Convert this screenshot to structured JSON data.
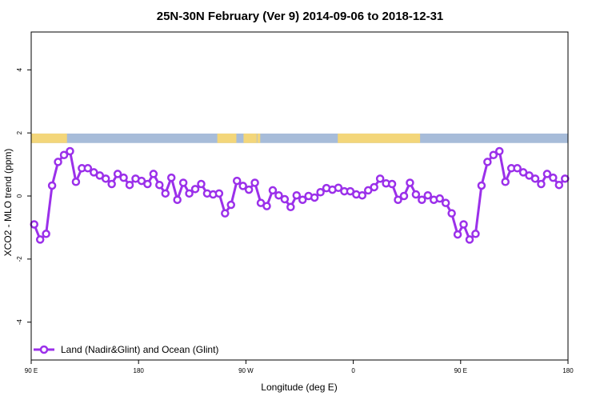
{
  "chart_data": {
    "type": "line",
    "title": "25N-30N February (Ver 9)   2014-09-06 to 2018-12-31",
    "xlabel": "Longitude (deg E)",
    "ylabel": "XCO2 - MLO trend (ppm)",
    "xlim": [
      90,
      540
    ],
    "ylim": [
      -5.2,
      5.2
    ],
    "x_ticks": [
      {
        "value": 90,
        "label": "90 E"
      },
      {
        "value": 180,
        "label": "180"
      },
      {
        "value": 270,
        "label": "90 W"
      },
      {
        "value": 360,
        "label": "0"
      },
      {
        "value": 450,
        "label": "90 E"
      },
      {
        "value": 540,
        "label": "180"
      }
    ],
    "y_ticks": [
      {
        "value": -4,
        "label": "-4"
      },
      {
        "value": -2,
        "label": "-2"
      },
      {
        "value": 0,
        "label": "0"
      },
      {
        "value": 2,
        "label": "2"
      },
      {
        "value": 4,
        "label": "4"
      }
    ],
    "grid": false,
    "legend_position": "bottom-left",
    "colors": {
      "series": "#9b30ea",
      "land": "#f3d67a",
      "ocean": "#a7bcd9"
    },
    "land_ocean_band": {
      "y_bottom": 1.68,
      "y_top": 1.98,
      "land_ranges": [
        [
          90,
          120
        ],
        [
          246,
          262
        ],
        [
          268,
          279
        ],
        [
          279.5,
          282
        ],
        [
          347,
          416
        ]
      ]
    },
    "series": [
      {
        "name": "Land (Nadir&Glint) and Ocean (Glint)",
        "x": [
          92.5,
          97.5,
          102.5,
          107.5,
          112.5,
          117.5,
          122.5,
          127.5,
          132.5,
          137.5,
          142.5,
          147.5,
          152.5,
          157.5,
          162.5,
          167.5,
          172.5,
          177.5,
          182.5,
          187.5,
          192.5,
          197.5,
          202.5,
          207.5,
          212.5,
          217.5,
          222.5,
          227.5,
          232.5,
          237.5,
          242.5,
          247.5,
          252.5,
          257.5,
          262.5,
          267.5,
          272.5,
          277.5,
          282.5,
          287.5,
          292.5,
          297.5,
          302.5,
          307.5,
          312.5,
          317.5,
          322.5,
          327.5,
          332.5,
          337.5,
          342.5,
          347.5,
          352.5,
          357.5,
          362.5,
          367.5,
          372.5,
          377.5,
          382.5,
          387.5,
          392.5,
          397.5,
          402.5,
          407.5,
          412.5,
          417.5,
          422.5,
          427.5,
          432.5,
          437.5,
          442.5,
          447.5,
          452.5,
          457.5,
          462.5,
          467.5,
          472.5,
          477.5,
          482.5,
          487.5,
          492.5,
          497.5,
          502.5,
          507.5,
          512.5,
          517.5,
          522.5,
          527.5,
          532.5,
          537.5
        ],
        "values": [
          -0.9,
          -1.38,
          -1.2,
          0.33,
          1.08,
          1.3,
          1.42,
          0.45,
          0.88,
          0.88,
          0.75,
          0.65,
          0.55,
          0.38,
          0.7,
          0.58,
          0.35,
          0.55,
          0.48,
          0.38,
          0.7,
          0.35,
          0.08,
          0.58,
          -0.12,
          0.42,
          0.08,
          0.22,
          0.38,
          0.08,
          0.05,
          0.08,
          -0.55,
          -0.28,
          0.48,
          0.32,
          0.2,
          0.42,
          -0.22,
          -0.32,
          0.18,
          0.02,
          -0.1,
          -0.35,
          0.02,
          -0.12,
          0.0,
          -0.05,
          0.12,
          0.25,
          0.2,
          0.26,
          0.15,
          0.15,
          0.05,
          0.02,
          0.18,
          0.28,
          0.55,
          0.4,
          0.38,
          -0.12,
          0.0,
          0.42,
          0.05,
          -0.12,
          0.02,
          -0.12,
          -0.08,
          -0.22,
          -0.55,
          -1.22,
          -0.9,
          -1.38,
          -1.2,
          0.33,
          1.08,
          1.3,
          1.42,
          0.45,
          0.88,
          0.88,
          0.75,
          0.65,
          0.55,
          0.38,
          0.7,
          0.58,
          0.35,
          0.55
        ]
      }
    ]
  }
}
